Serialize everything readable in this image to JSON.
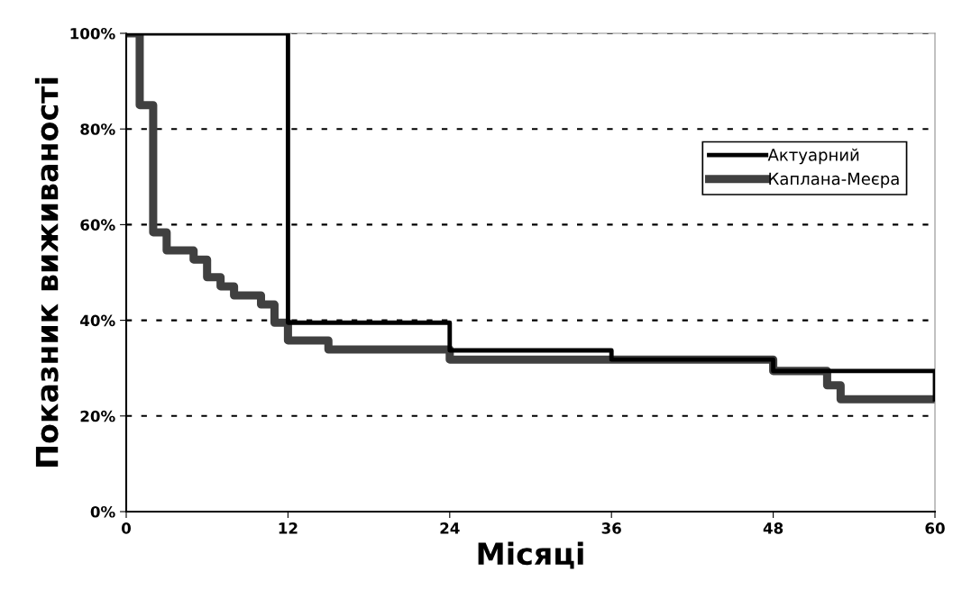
{
  "chart_data": {
    "type": "step",
    "xlabel": "Місяці",
    "ylabel": "Показник виживаності",
    "series": [
      {
        "name": "Актуарний",
        "color": "#000000",
        "x": [
          0,
          12,
          24,
          36,
          48,
          60
        ],
        "values": [
          100,
          39.5,
          33.7,
          31.8,
          29.4,
          23.5
        ]
      },
      {
        "name": "Каплана-Меєра",
        "color": "#404040",
        "x": [
          0,
          1,
          2,
          3,
          5,
          6,
          7,
          8,
          10,
          11,
          12,
          15,
          24,
          48,
          52,
          53,
          60
        ],
        "values": [
          100,
          85,
          58.4,
          54.6,
          52.7,
          49,
          47.1,
          45.2,
          43.3,
          39.5,
          35.8,
          33.9,
          31.8,
          29.4,
          26.4,
          23.5,
          23.5
        ]
      }
    ],
    "xlim": [
      0,
      60
    ],
    "xticks": [
      0,
      12,
      24,
      36,
      48,
      60
    ],
    "ylim": [
      0,
      100
    ],
    "yticks": [
      {
        "value": 0,
        "label": "0%"
      },
      {
        "value": 20,
        "label": "20%"
      },
      {
        "value": 40,
        "label": "40%"
      },
      {
        "value": 60,
        "label": "60%"
      },
      {
        "value": 80,
        "label": "80%"
      },
      {
        "value": 100,
        "label": "100%"
      }
    ],
    "grid": "y",
    "legend": "top right",
    "marker": "none",
    "line_style": "solid"
  }
}
